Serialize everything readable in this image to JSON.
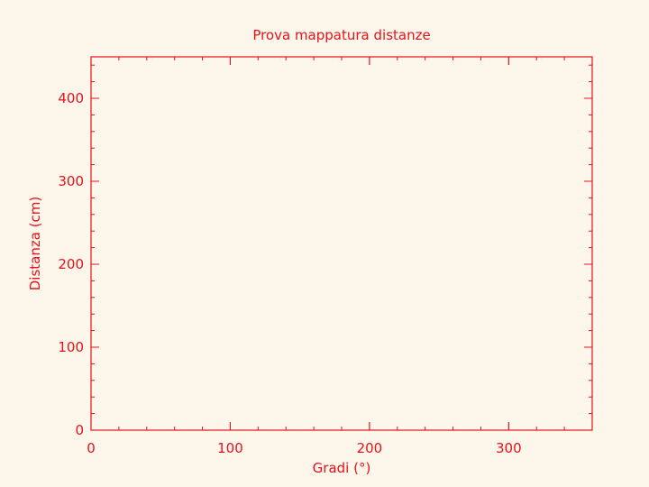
{
  "colors": {
    "background": "#fdf6ea",
    "axis": "#e8111a"
  },
  "chart_data": {
    "type": "scatter",
    "title": "Prova mappatura distanze",
    "xlabel": "Gradi (°)",
    "ylabel": "Distanza (cm)",
    "xlim": [
      0,
      360
    ],
    "ylim": [
      0,
      450
    ],
    "x_major_ticks": [
      0,
      100,
      200,
      300
    ],
    "x_minor_step": 20,
    "y_major_ticks": [
      0,
      100,
      200,
      300,
      400
    ],
    "y_minor_step": 20,
    "grid": false,
    "series": [
      {
        "x": [],
        "y": []
      }
    ]
  }
}
